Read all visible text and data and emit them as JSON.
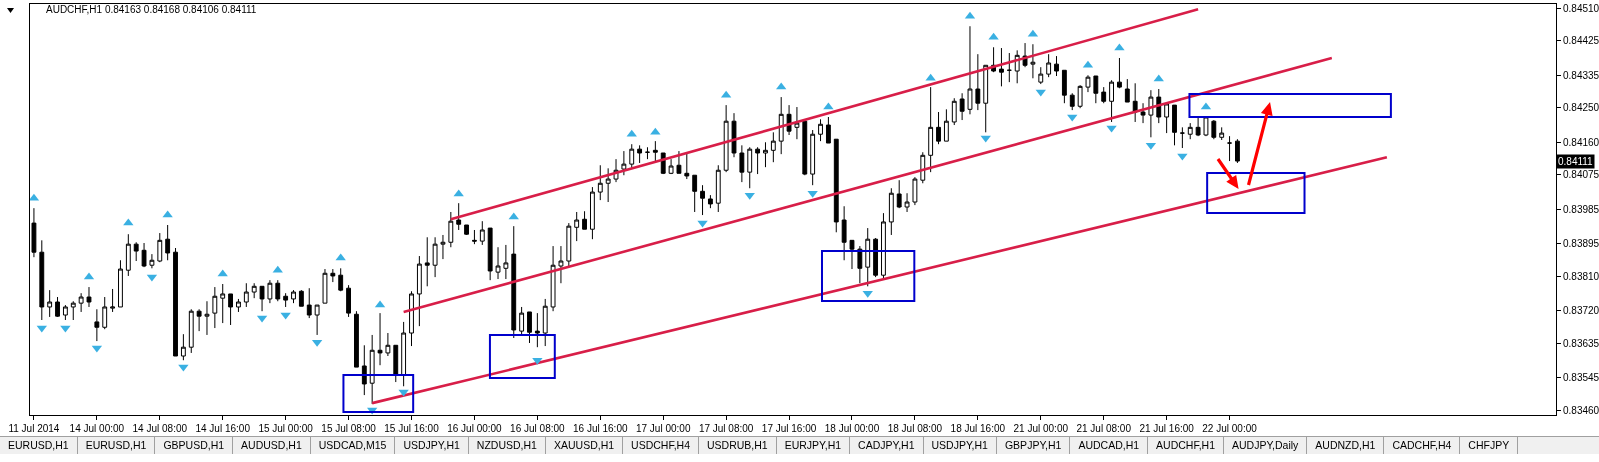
{
  "chart_data": {
    "type": "candlestick",
    "title": "AUDCHF,H1 0.84163 0.84168 0.84106 0.84111",
    "categories": [
      "11 Jul 2014",
      null,
      null,
      null,
      null,
      null,
      null,
      null,
      "14 Jul 00:00",
      null,
      null,
      null,
      null,
      null,
      null,
      null,
      "14 Jul 08:00",
      null,
      null,
      null,
      null,
      null,
      null,
      null,
      "14 Jul 16:00",
      null,
      null,
      null,
      null,
      null,
      null,
      null,
      "15 Jul 00:00",
      null,
      null,
      null,
      null,
      null,
      null,
      null,
      "15 Jul 08:00",
      null,
      null,
      null,
      null,
      null,
      null,
      null,
      "15 Jul 16:00",
      null,
      null,
      null,
      null,
      null,
      null,
      null,
      "16 Jul 00:00",
      null,
      null,
      null,
      null,
      null,
      null,
      null,
      "16 Jul 08:00",
      null,
      null,
      null,
      null,
      null,
      null,
      null,
      "16 Jul 16:00",
      null,
      null,
      null,
      null,
      null,
      null,
      null,
      "17 Jul 00:00",
      null,
      null,
      null,
      null,
      null,
      null,
      null,
      "17 Jul 08:00",
      null,
      null,
      null,
      null,
      null,
      null,
      null,
      "17 Jul 16:00",
      null,
      null,
      null,
      null,
      null,
      null,
      null,
      "18 Jul 00:00",
      null,
      null,
      null,
      null,
      null,
      null,
      null,
      "18 Jul 08:00",
      null,
      null,
      null,
      null,
      null,
      null,
      null,
      "18 Jul 16:00",
      null,
      null,
      null,
      null,
      null,
      null,
      null,
      "21 Jul 00:00",
      null,
      null,
      null,
      null,
      null,
      null,
      null,
      "21 Jul 08:00",
      null,
      null,
      null,
      null,
      null,
      null,
      null,
      "21 Jul 16:00",
      null,
      null,
      null,
      null,
      null,
      null,
      null,
      "22 Jul 00:00",
      null,
      null,
      null,
      null,
      null,
      null,
      null,
      null,
      null,
      null,
      null,
      null,
      null,
      null,
      null,
      null,
      null,
      null,
      null,
      null,
      null,
      null,
      null,
      null,
      null,
      null,
      null,
      null,
      null,
      null,
      null,
      null,
      null,
      null,
      null,
      null,
      null,
      null,
      null,
      null,
      null
    ],
    "ohlc": [
      [
        0.83949,
        0.83988,
        0.8386,
        0.83873
      ],
      [
        0.83873,
        0.83904,
        0.83696,
        0.8373
      ],
      [
        0.8373,
        0.83774,
        0.83704,
        0.83743
      ],
      [
        0.83743,
        0.83756,
        0.83704,
        0.83706
      ],
      [
        0.83709,
        0.83735,
        0.83696,
        0.8373
      ],
      [
        0.8373,
        0.83745,
        0.83696,
        0.8374
      ],
      [
        0.8374,
        0.83766,
        0.83717,
        0.83756
      ],
      [
        0.83756,
        0.83782,
        0.8373,
        0.83743
      ],
      [
        0.83691,
        0.83724,
        0.83641,
        0.83677
      ],
      [
        0.83677,
        0.83756,
        0.83672,
        0.8373
      ],
      [
        0.83727,
        0.83777,
        0.83717,
        0.8373
      ],
      [
        0.8373,
        0.83852,
        0.8373,
        0.83829
      ],
      [
        0.83826,
        0.8392,
        0.83811,
        0.83894
      ],
      [
        0.83894,
        0.83899,
        0.8385,
        0.83876
      ],
      [
        0.83878,
        0.83897,
        0.83834,
        0.83837
      ],
      [
        0.83839,
        0.83868,
        0.83831,
        0.83852
      ],
      [
        0.8385,
        0.83923,
        0.83847,
        0.83904
      ],
      [
        0.83907,
        0.83944,
        0.83852,
        0.83871
      ],
      [
        0.83873,
        0.83884,
        0.83602,
        0.83602
      ],
      [
        0.83602,
        0.83659,
        0.83591,
        0.83625
      ],
      [
        0.83625,
        0.83724,
        0.8361,
        0.83719
      ],
      [
        0.83719,
        0.83724,
        0.83667,
        0.83706
      ],
      [
        0.83706,
        0.83745,
        0.83657,
        0.83711
      ],
      [
        0.83714,
        0.83782,
        0.83675,
        0.83758
      ],
      [
        0.83753,
        0.8379,
        0.83688,
        0.83764
      ],
      [
        0.83764,
        0.83764,
        0.83683,
        0.8373
      ],
      [
        0.8373,
        0.83751,
        0.83717,
        0.83743
      ],
      [
        0.83743,
        0.83792,
        0.8373,
        0.83769
      ],
      [
        0.83769,
        0.83792,
        0.83753,
        0.83784
      ],
      [
        0.83784,
        0.83784,
        0.83719,
        0.83751
      ],
      [
        0.83751,
        0.838,
        0.8374,
        0.83792
      ],
      [
        0.83792,
        0.838,
        0.83745,
        0.83751
      ],
      [
        0.83758,
        0.83766,
        0.8373,
        0.83748
      ],
      [
        0.83751,
        0.83774,
        0.8374,
        0.83769
      ],
      [
        0.83771,
        0.83774,
        0.83732,
        0.83732
      ],
      [
        0.83735,
        0.83779,
        0.83701,
        0.83709
      ],
      [
        0.83709,
        0.83735,
        0.83657,
        0.83735
      ],
      [
        0.8374,
        0.83829,
        0.8374,
        0.83818
      ],
      [
        0.83818,
        0.83829,
        0.83795,
        0.83811
      ],
      [
        0.83813,
        0.83831,
        0.83771,
        0.83774
      ],
      [
        0.83779,
        0.83787,
        0.83704,
        0.83714
      ],
      [
        0.83711,
        0.83719,
        0.83573,
        0.83573
      ],
      [
        0.83576,
        0.8363,
        0.835,
        0.83529
      ],
      [
        0.83531,
        0.83657,
        0.83477,
        0.83617
      ],
      [
        0.83617,
        0.83714,
        0.83578,
        0.8361
      ],
      [
        0.8361,
        0.83662,
        0.83602,
        0.8363
      ],
      [
        0.8363,
        0.8363,
        0.83534,
        0.83552
      ],
      [
        0.83552,
        0.83691,
        0.83523,
        0.83662
      ],
      [
        0.83662,
        0.83771,
        0.83628,
        0.83764
      ],
      [
        0.83764,
        0.83863,
        0.8368,
        0.83842
      ],
      [
        0.83845,
        0.83912,
        0.83784,
        0.83839
      ],
      [
        0.83839,
        0.83912,
        0.83808,
        0.83894
      ],
      [
        0.83894,
        0.83918,
        0.83855,
        0.83899
      ],
      [
        0.83899,
        0.83978,
        0.83886,
        0.83954
      ],
      [
        0.83957,
        0.84001,
        0.83931,
        0.83946
      ],
      [
        0.83944,
        0.83944,
        0.83918,
        0.8392
      ],
      [
        0.83904,
        0.83931,
        0.83894,
        0.83902
      ],
      [
        0.83902,
        0.83954,
        0.83892,
        0.83931
      ],
      [
        0.83936,
        0.83936,
        0.838,
        0.83824
      ],
      [
        0.83821,
        0.83886,
        0.83803,
        0.83837
      ],
      [
        0.83831,
        0.83892,
        0.83803,
        0.83845
      ],
      [
        0.83868,
        0.83941,
        0.83649,
        0.8367
      ],
      [
        0.83667,
        0.8373,
        0.83657,
        0.83714
      ],
      [
        0.83717,
        0.83717,
        0.83636,
        0.83664
      ],
      [
        0.83667,
        0.83714,
        0.83625,
        0.83662
      ],
      [
        0.83662,
        0.83751,
        0.83628,
        0.83732
      ],
      [
        0.8373,
        0.83889,
        0.83719,
        0.83839
      ],
      [
        0.83837,
        0.83889,
        0.83792,
        0.8385
      ],
      [
        0.8385,
        0.83949,
        0.83834,
        0.83941
      ],
      [
        0.83938,
        0.83978,
        0.83902,
        0.83957
      ],
      [
        0.83959,
        0.8398,
        0.83933,
        0.83933
      ],
      [
        0.83933,
        0.84043,
        0.83907,
        0.8403
      ],
      [
        0.8403,
        0.841,
        0.84009,
        0.84053
      ],
      [
        0.84053,
        0.84092,
        0.84004,
        0.84064
      ],
      [
        0.84064,
        0.84116,
        0.84056,
        0.84087
      ],
      [
        0.8409,
        0.84137,
        0.84074,
        0.84103
      ],
      [
        0.84103,
        0.84155,
        0.84092,
        0.84142
      ],
      [
        0.84142,
        0.84152,
        0.84106,
        0.84132
      ],
      [
        0.84134,
        0.84147,
        0.84116,
        0.84134
      ],
      [
        0.84139,
        0.84163,
        0.84108,
        0.84134
      ],
      [
        0.84132,
        0.84132,
        0.84077,
        0.84079
      ],
      [
        0.84079,
        0.84116,
        0.84077,
        0.84098
      ],
      [
        0.841,
        0.84137,
        0.84079,
        0.84079
      ],
      [
        0.84079,
        0.84132,
        0.84064,
        0.84072
      ],
      [
        0.84074,
        0.84074,
        0.83978,
        0.84032
      ],
      [
        0.84032,
        0.84048,
        0.8397,
        0.84014
      ],
      [
        0.84012,
        0.84022,
        0.83988,
        0.83999
      ],
      [
        0.84001,
        0.841,
        0.83978,
        0.84087
      ],
      [
        0.84087,
        0.84257,
        0.84082,
        0.84215
      ],
      [
        0.84215,
        0.84236,
        0.84121,
        0.84132
      ],
      [
        0.84132,
        0.84152,
        0.84056,
        0.84082
      ],
      [
        0.84082,
        0.84147,
        0.8404,
        0.84142
      ],
      [
        0.84142,
        0.84147,
        0.84077,
        0.84132
      ],
      [
        0.84132,
        0.8416,
        0.84095,
        0.84139
      ],
      [
        0.84139,
        0.84186,
        0.84108,
        0.84163
      ],
      [
        0.84163,
        0.84278,
        0.84129,
        0.84233
      ],
      [
        0.84233,
        0.84257,
        0.84179,
        0.84189
      ],
      [
        0.84199,
        0.84252,
        0.84168,
        0.8421
      ],
      [
        0.84215,
        0.84218,
        0.84074,
        0.84077
      ],
      [
        0.84077,
        0.84192,
        0.84048,
        0.84181
      ],
      [
        0.84181,
        0.8422,
        0.84163,
        0.84207
      ],
      [
        0.84205,
        0.84226,
        0.84158,
        0.84158
      ],
      [
        0.84168,
        0.84168,
        0.83925,
        0.83952
      ],
      [
        0.83957,
        0.83993,
        0.83852,
        0.83899
      ],
      [
        0.83904,
        0.83904,
        0.83829,
        0.83881
      ],
      [
        0.83881,
        0.83889,
        0.83792,
        0.83831
      ],
      [
        0.83834,
        0.83936,
        0.83784,
        0.83907
      ],
      [
        0.83907,
        0.8391,
        0.83808,
        0.83813
      ],
      [
        0.83813,
        0.83975,
        0.83805,
        0.83952
      ],
      [
        0.83952,
        0.8404,
        0.83918,
        0.84027
      ],
      [
        0.84025,
        0.84061,
        0.83988,
        0.83991
      ],
      [
        0.83991,
        0.84027,
        0.83978,
        0.84004
      ],
      [
        0.84004,
        0.84069,
        0.83996,
        0.84064
      ],
      [
        0.84061,
        0.84134,
        0.84053,
        0.84126
      ],
      [
        0.84126,
        0.84304,
        0.84082,
        0.84199
      ],
      [
        0.84199,
        0.84239,
        0.84155,
        0.84163
      ],
      [
        0.84163,
        0.84246,
        0.84163,
        0.84215
      ],
      [
        0.84213,
        0.84275,
        0.84205,
        0.84267
      ],
      [
        0.84273,
        0.84288,
        0.84218,
        0.84241
      ],
      [
        0.84246,
        0.84463,
        0.84233,
        0.84299
      ],
      [
        0.84299,
        0.8439,
        0.84244,
        0.84262
      ],
      [
        0.84262,
        0.84361,
        0.84186,
        0.84361
      ],
      [
        0.84361,
        0.84408,
        0.84343,
        0.84346
      ],
      [
        0.84351,
        0.84406,
        0.84306,
        0.84343
      ],
      [
        0.84348,
        0.84393,
        0.84317,
        0.84348
      ],
      [
        0.84346,
        0.844,
        0.84314,
        0.84387
      ],
      [
        0.84385,
        0.84419,
        0.84356,
        0.84361
      ],
      [
        0.84364,
        0.84416,
        0.84327,
        0.84369
      ],
      [
        0.84317,
        0.84356,
        0.84312,
        0.84338
      ],
      [
        0.84338,
        0.8439,
        0.8433,
        0.84367
      ],
      [
        0.84364,
        0.84385,
        0.84333,
        0.84346
      ],
      [
        0.84348,
        0.84348,
        0.84262,
        0.84283
      ],
      [
        0.84283,
        0.84288,
        0.84244,
        0.84254
      ],
      [
        0.84254,
        0.84309,
        0.84249,
        0.84306
      ],
      [
        0.84304,
        0.84335,
        0.84291,
        0.8433
      ],
      [
        0.84333,
        0.84333,
        0.84262,
        0.84288
      ],
      [
        0.84291,
        0.84304,
        0.84262,
        0.84267
      ],
      [
        0.84267,
        0.84322,
        0.84213,
        0.84317
      ],
      [
        0.84317,
        0.8438,
        0.84301,
        0.84304
      ],
      [
        0.84299,
        0.84325,
        0.84265,
        0.84265
      ],
      [
        0.84267,
        0.84314,
        0.84213,
        0.84239
      ],
      [
        0.84239,
        0.84262,
        0.8421,
        0.84231
      ],
      [
        0.84231,
        0.84296,
        0.84173,
        0.84278
      ],
      [
        0.84278,
        0.84299,
        0.8421,
        0.84226
      ],
      [
        0.84226,
        0.8426,
        0.84184,
        0.8426
      ],
      [
        0.84257,
        0.84257,
        0.84152,
        0.84186
      ],
      [
        0.84184,
        0.84199,
        0.84145,
        0.84184
      ],
      [
        0.84181,
        0.8421,
        0.84168,
        0.84199
      ],
      [
        0.84199,
        0.84226,
        0.84176,
        0.84179
      ],
      [
        0.84179,
        0.84226,
        0.84176,
        0.84226
      ],
      [
        0.84215,
        0.84218,
        0.84168,
        0.84173
      ],
      [
        0.84173,
        0.84199,
        0.84166,
        0.84184
      ],
      [
        0.84158,
        0.84176,
        0.84111,
        0.84158
      ],
      [
        0.84163,
        0.84168,
        0.84106,
        0.84111
      ],
      null,
      null,
      null,
      null,
      null,
      null,
      null,
      null,
      null,
      null,
      null,
      null,
      null,
      null,
      null,
      null,
      null,
      null,
      null,
      null,
      null,
      null,
      null,
      null,
      null,
      null,
      null,
      null,
      null,
      null,
      null,
      null,
      null,
      null,
      null,
      null,
      null,
      null,
      null,
      null
    ],
    "series": [
      {
        "type": "line",
        "color": "#d81e48",
        "values": [
          null,
          null,
          null,
          null,
          null,
          null,
          null,
          null,
          null,
          null,
          null,
          null,
          null,
          null,
          null,
          null,
          null,
          null,
          null,
          null,
          null,
          null,
          null,
          null,
          null,
          null,
          null,
          null,
          null,
          null,
          null,
          null,
          null,
          null,
          null,
          null,
          null,
          null,
          null,
          null,
          null,
          null,
          null,
          null,
          null,
          null,
          null,
          null,
          null,
          null,
          null,
          null,
          null,
          0.83959,
          null,
          null,
          null,
          null,
          null,
          null,
          null,
          null,
          null,
          null,
          null,
          null,
          null,
          null,
          null,
          null,
          null,
          null,
          null,
          null,
          null,
          null,
          null,
          null,
          null,
          null,
          null,
          null,
          null,
          null,
          null,
          null,
          null,
          null,
          null,
          null,
          null,
          null,
          null,
          null,
          null,
          null,
          null,
          null,
          null,
          null,
          null,
          null,
          null,
          null,
          null,
          null,
          null,
          null,
          null,
          null,
          null,
          null,
          null,
          null,
          null,
          null,
          null,
          null,
          null,
          null,
          null,
          null,
          null,
          null,
          null,
          null,
          null,
          null,
          null,
          null,
          null,
          null,
          null,
          null,
          null,
          null,
          null,
          null,
          null,
          null,
          null,
          null,
          null,
          null,
          null,
          null,
          null,
          null,
          0.84507,
          null,
          null,
          null,
          null,
          null,
          null,
          null,
          null,
          null,
          null,
          null,
          null,
          null,
          null,
          null,
          null,
          null,
          null,
          null,
          null,
          null,
          null,
          null,
          null,
          null,
          null,
          null,
          null,
          null,
          null,
          null,
          null,
          null,
          null,
          null,
          null,
          null,
          null,
          null,
          null,
          null,
          null,
          null,
          null,
          null
        ]
      },
      {
        "type": "line",
        "color": "#d81e48",
        "values": [
          null,
          null,
          null,
          null,
          null,
          null,
          null,
          null,
          null,
          null,
          null,
          null,
          null,
          null,
          null,
          null,
          null,
          null,
          null,
          null,
          null,
          null,
          null,
          null,
          null,
          null,
          null,
          null,
          null,
          null,
          null,
          null,
          null,
          null,
          null,
          null,
          null,
          null,
          null,
          null,
          null,
          null,
          null,
          null,
          null,
          null,
          null,
          0.83717,
          null,
          null,
          null,
          null,
          null,
          null,
          null,
          null,
          null,
          null,
          null,
          null,
          null,
          null,
          null,
          null,
          null,
          null,
          null,
          null,
          null,
          null,
          null,
          null,
          null,
          null,
          null,
          null,
          null,
          null,
          null,
          null,
          null,
          null,
          null,
          null,
          null,
          null,
          null,
          null,
          null,
          null,
          null,
          null,
          null,
          null,
          null,
          null,
          null,
          null,
          null,
          null,
          null,
          null,
          null,
          null,
          null,
          null,
          null,
          null,
          null,
          null,
          null,
          null,
          null,
          null,
          null,
          null,
          null,
          null,
          null,
          null,
          null,
          null,
          null,
          null,
          null,
          null,
          null,
          null,
          null,
          null,
          null,
          null,
          null,
          null,
          null,
          null,
          null,
          null,
          null,
          null,
          null,
          null,
          null,
          null,
          null,
          null,
          null,
          null,
          null,
          null,
          null,
          null,
          null,
          null,
          null,
          null,
          null,
          null,
          null,
          null,
          null,
          null,
          null,
          null,
          null,
          0.8438,
          null,
          null,
          null,
          null,
          null,
          null,
          null,
          null,
          null,
          null,
          null,
          null,
          null,
          null,
          null,
          null,
          null,
          null,
          null,
          null,
          null,
          null,
          null,
          null,
          null,
          null,
          null,
          null
        ]
      },
      {
        "type": "line",
        "color": "#d81e48",
        "values": [
          null,
          null,
          null,
          null,
          null,
          null,
          null,
          null,
          null,
          null,
          null,
          null,
          null,
          null,
          null,
          null,
          null,
          null,
          null,
          null,
          null,
          null,
          null,
          null,
          null,
          null,
          null,
          null,
          null,
          null,
          null,
          null,
          null,
          null,
          null,
          null,
          null,
          null,
          null,
          null,
          null,
          null,
          null,
          0.83479,
          null,
          null,
          null,
          null,
          null,
          null,
          null,
          null,
          null,
          null,
          null,
          null,
          null,
          null,
          null,
          null,
          null,
          null,
          null,
          null,
          null,
          null,
          null,
          null,
          null,
          null,
          null,
          null,
          null,
          null,
          null,
          null,
          null,
          null,
          null,
          null,
          null,
          null,
          null,
          null,
          null,
          null,
          null,
          null,
          null,
          null,
          null,
          null,
          null,
          null,
          null,
          null,
          null,
          null,
          null,
          null,
          null,
          null,
          null,
          null,
          null,
          null,
          null,
          null,
          null,
          null,
          null,
          null,
          null,
          null,
          null,
          null,
          null,
          null,
          null,
          null,
          null,
          null,
          null,
          null,
          null,
          null,
          null,
          null,
          null,
          null,
          null,
          null,
          null,
          null,
          null,
          null,
          null,
          null,
          null,
          null,
          null,
          null,
          null,
          null,
          null,
          null,
          null,
          null,
          null,
          null,
          null,
          null,
          null,
          null,
          null,
          null,
          null,
          null,
          null,
          null,
          null,
          null,
          null,
          null,
          null,
          null,
          null,
          null,
          null,
          null,
          null,
          null,
          0.84121,
          null,
          null,
          null,
          null,
          null,
          null,
          null,
          null,
          null,
          null,
          null,
          null,
          null,
          null,
          null,
          null,
          null,
          null,
          null,
          null,
          null
        ]
      },
      {
        "type": "scatter",
        "marker": "triangle",
        "color": "#3ab0e2",
        "values": [
          0.84014,
          null,
          null,
          null,
          null,
          null,
          null,
          0.83808,
          null,
          null,
          null,
          null,
          0.83949,
          null,
          null,
          null,
          null,
          0.8397,
          null,
          null,
          null,
          null,
          null,
          null,
          0.83816,
          null,
          null,
          null,
          null,
          null,
          null,
          0.83826,
          null,
          null,
          null,
          null,
          null,
          null,
          null,
          0.83858,
          null,
          null,
          null,
          null,
          0.83735,
          null,
          null,
          null,
          null,
          null,
          null,
          null,
          null,
          null,
          0.84025,
          null,
          null,
          null,
          null,
          null,
          null,
          0.83965,
          null,
          null,
          null,
          null,
          null,
          null,
          null,
          null,
          null,
          null,
          null,
          null,
          null,
          null,
          0.84181,
          null,
          null,
          0.84186,
          null,
          null,
          null,
          null,
          null,
          null,
          null,
          null,
          0.84283,
          null,
          null,
          null,
          null,
          null,
          null,
          0.84304,
          null,
          null,
          null,
          null,
          null,
          0.84252,
          null,
          null,
          null,
          null,
          null,
          null,
          null,
          null,
          null,
          null,
          null,
          null,
          0.84327,
          null,
          null,
          null,
          null,
          0.84489,
          null,
          null,
          0.84434,
          null,
          null,
          null,
          null,
          0.84442,
          null,
          null,
          null,
          null,
          null,
          null,
          0.84361,
          null,
          null,
          null,
          0.84406,
          null,
          null,
          null,
          null,
          0.84325,
          null,
          null,
          null,
          null,
          null,
          0.84252,
          null,
          null,
          null,
          null,
          null,
          null,
          null,
          null,
          null,
          null,
          null,
          null,
          null,
          null,
          null,
          null,
          null,
          null,
          null,
          null,
          null,
          null,
          null,
          null,
          null,
          null,
          null,
          null,
          null,
          null,
          null,
          null,
          null,
          null,
          null,
          null,
          null,
          null,
          null,
          null,
          null,
          null,
          null,
          null
        ]
      },
      {
        "type": "scatter",
        "marker": "triangle-down",
        "color": "#3ab0e2",
        "values": [
          null,
          0.83675,
          null,
          null,
          0.83675,
          null,
          null,
          null,
          0.83623,
          null,
          null,
          null,
          null,
          null,
          null,
          0.83808,
          null,
          null,
          null,
          0.83573,
          null,
          null,
          null,
          null,
          null,
          null,
          null,
          null,
          null,
          0.83701,
          null,
          null,
          0.83709,
          null,
          null,
          null,
          0.83638,
          null,
          null,
          null,
          null,
          null,
          null,
          0.83461,
          null,
          null,
          null,
          0.83508,
          null,
          null,
          null,
          null,
          null,
          null,
          null,
          null,
          null,
          null,
          null,
          null,
          null,
          null,
          null,
          null,
          0.83591,
          null,
          null,
          null,
          null,
          null,
          null,
          null,
          null,
          null,
          null,
          null,
          null,
          null,
          null,
          null,
          null,
          null,
          null,
          null,
          null,
          0.83949,
          null,
          null,
          null,
          null,
          null,
          0.84022,
          null,
          null,
          null,
          null,
          null,
          null,
          null,
          0.84027,
          null,
          null,
          null,
          null,
          null,
          null,
          0.83766,
          null,
          null,
          null,
          null,
          null,
          null,
          null,
          null,
          null,
          null,
          null,
          null,
          null,
          null,
          0.84171,
          null,
          null,
          null,
          null,
          null,
          null,
          0.84291,
          null,
          null,
          null,
          0.84226,
          null,
          null,
          null,
          null,
          0.84197,
          null,
          null,
          null,
          null,
          0.84152,
          null,
          null,
          null,
          0.84124,
          null,
          null,
          null,
          null,
          null,
          null,
          null,
          null,
          null,
          null,
          null,
          null,
          null,
          null,
          null,
          null,
          null,
          null,
          null,
          null,
          null,
          null,
          null,
          null,
          null,
          null,
          null,
          null,
          null,
          null,
          null,
          null,
          null,
          null,
          null,
          null,
          null,
          null,
          null,
          null,
          null,
          null,
          null,
          null,
          null,
          null,
          null
        ]
      }
    ],
    "ylim": [
      0.83448,
      0.84521
    ],
    "yticks": [
      {
        "value": 0.8451,
        "label": "0.84510"
      },
      {
        "value": 0.84425,
        "label": "0.84425"
      },
      {
        "value": 0.84335,
        "label": "0.84335"
      },
      {
        "value": 0.8425,
        "label": "0.84250"
      },
      {
        "value": 0.8416,
        "label": "0.84160"
      },
      {
        "value": 0.84075,
        "label": "0.84075"
      },
      {
        "value": 0.83985,
        "label": "0.83985"
      },
      {
        "value": 0.83895,
        "label": "0.83895"
      },
      {
        "value": 0.8381,
        "label": "0.83810"
      },
      {
        "value": 0.8372,
        "label": "0.83720"
      },
      {
        "value": 0.83635,
        "label": "0.83635"
      },
      {
        "value": 0.83545,
        "label": "0.83545"
      },
      {
        "value": 0.8346,
        "label": "0.83460"
      }
    ],
    "annotations": [
      {
        "text": "0.84111",
        "y": 0.84111
      },
      "EURUSD,H1",
      "EURUSD,H1",
      "GBPUSD,H1",
      "AUDUSD,H1",
      "USDCAD,M15",
      "USDJPY,H1",
      "NZDUSD,H1",
      "XAUUSD,H1",
      "USDCHF,H4",
      "USDRUB,H1",
      "EURJPY,H1",
      "CADJPY,H1",
      "USDJPY,H1",
      "GBPJPY,H1",
      "AUDCAD,H1",
      "AUDCHF,H1",
      "AUDJPY,Daily",
      "AUDNZD,H1",
      "CADCHF,H4",
      "CHFJPY"
    ]
  }
}
